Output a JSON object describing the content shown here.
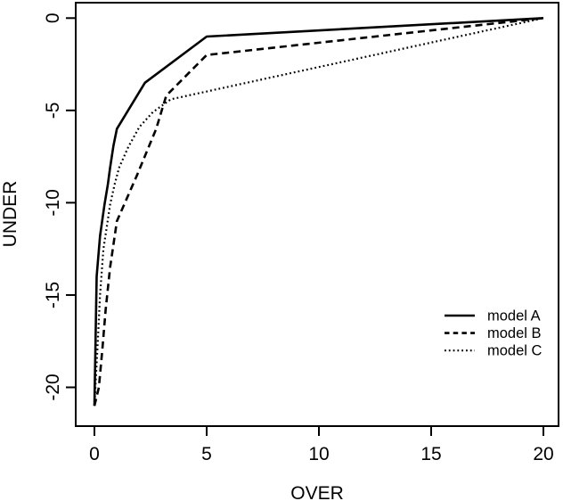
{
  "figure": {
    "background": "#ffffff",
    "foreground": "#000000"
  },
  "chart_data": {
    "type": "line",
    "xlabel": "OVER",
    "ylabel": "UNDER",
    "xlim": [
      0,
      20
    ],
    "ylim": [
      -21,
      0
    ],
    "x_ticks": [
      0,
      5,
      10,
      15,
      20
    ],
    "y_ticks": [
      0,
      -5,
      -10,
      -15,
      -20
    ],
    "grid": false,
    "frame": "full-box",
    "legend_position": "bottom-right",
    "legend": [
      "model A",
      "model B",
      "model C"
    ],
    "series": [
      {
        "name": "model A",
        "line_style": "solid",
        "color": "#000000",
        "points": [
          [
            0,
            -21
          ],
          [
            0.1,
            -14
          ],
          [
            0.25,
            -11.8
          ],
          [
            0.45,
            -10.1
          ],
          [
            0.6,
            -9
          ],
          [
            0.7,
            -8.1
          ],
          [
            0.85,
            -6.9
          ],
          [
            1,
            -6
          ],
          [
            2.25,
            -3.5
          ],
          [
            5,
            -1
          ],
          [
            20,
            0
          ]
        ]
      },
      {
        "name": "model B",
        "line_style": "dashed",
        "color": "#000000",
        "points": [
          [
            0,
            -21
          ],
          [
            0.2,
            -20
          ],
          [
            0.35,
            -18
          ],
          [
            0.5,
            -15.8
          ],
          [
            0.7,
            -13.5
          ],
          [
            1,
            -11
          ],
          [
            1.9,
            -8.5
          ],
          [
            2.75,
            -6
          ],
          [
            3.2,
            -4.2
          ],
          [
            5,
            -2
          ],
          [
            20,
            0
          ]
        ]
      },
      {
        "name": "model C",
        "line_style": "dotted",
        "color": "#000000",
        "points": [
          [
            0,
            -21
          ],
          [
            0.15,
            -17.5
          ],
          [
            0.25,
            -15
          ],
          [
            0.4,
            -12.5
          ],
          [
            0.55,
            -11.3
          ],
          [
            0.7,
            -10.1
          ],
          [
            0.9,
            -9
          ],
          [
            1.1,
            -8.1
          ],
          [
            1.5,
            -7
          ],
          [
            2,
            -5.9
          ],
          [
            2.6,
            -5.1
          ],
          [
            3.4,
            -4.4
          ],
          [
            20,
            0
          ]
        ]
      }
    ]
  }
}
